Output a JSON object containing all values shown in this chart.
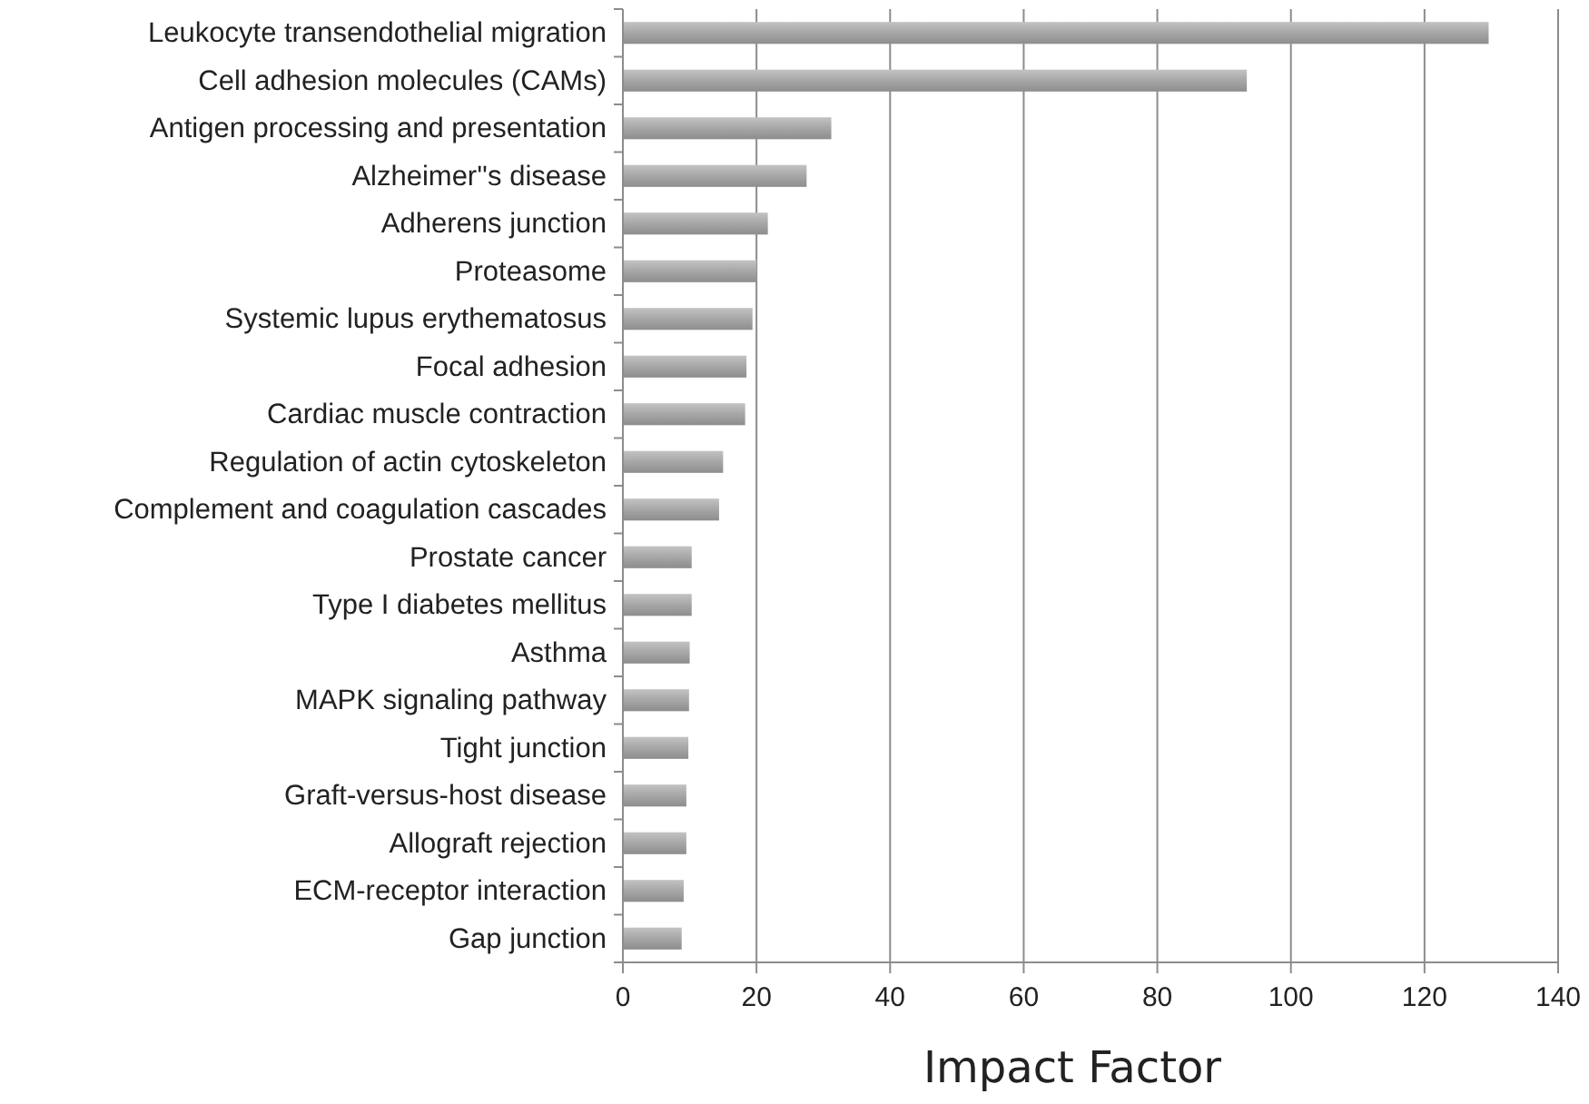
{
  "chart_data": {
    "type": "bar",
    "orientation": "horizontal",
    "xlabel": "Impact Factor",
    "categories": [
      "Leukocyte transendothelial migration",
      "Cell adhesion molecules (CAMs)",
      "Antigen processing and presentation",
      "Alzheimer''s disease",
      "Adherens junction",
      "Proteasome",
      "Systemic lupus erythematosus",
      "Focal adhesion",
      "Cardiac muscle contraction",
      "Regulation of actin cytoskeleton",
      "Complement and coagulation cascades",
      "Prostate cancer",
      "Type I diabetes mellitus",
      "Asthma",
      "MAPK signaling pathway",
      "Tight junction",
      "Graft-versus-host disease",
      "Allograft rejection",
      "ECM-receptor interaction",
      "Gap junction"
    ],
    "values": [
      129.6,
      93.4,
      31.2,
      27.5,
      21.7,
      20.0,
      19.4,
      18.5,
      18.3,
      15.0,
      14.4,
      10.3,
      10.3,
      10.0,
      9.9,
      9.8,
      9.5,
      9.5,
      9.1,
      8.8
    ],
    "color": "#a9a9a9",
    "xlim": [
      0,
      140
    ],
    "xticks": [
      0,
      20,
      40,
      60,
      80,
      100,
      120,
      140
    ],
    "grid": "x"
  }
}
